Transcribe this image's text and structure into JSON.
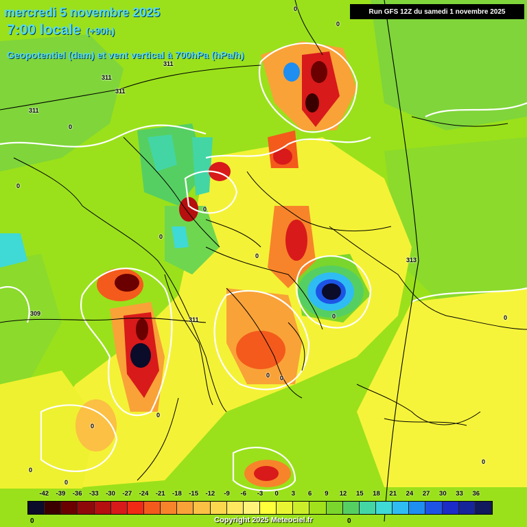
{
  "header": {
    "date_line": "mercredi 5 novembre 2025",
    "time_line": "7:00 locale",
    "lead_time": "(+90h)",
    "field_line": "Geopotentiel (dam) et vent vertical à 700hPa (hPa/h)"
  },
  "run_info": "Run GFS 12Z du samedi 1 novembre 2025",
  "contour_labels": {
    "l311_a": "311",
    "l311_b": "311",
    "l311_c": "311",
    "l311_d": "311",
    "l311_e": "311",
    "l309": "309",
    "l313": "313",
    "z_a": "0",
    "z_b": "0",
    "z_c": "0",
    "z_d": "0",
    "z_e": "0",
    "z_f": "0",
    "z_g": "0",
    "z_h": "0",
    "z_i": "0",
    "z_j": "0",
    "z_k": "0",
    "z_l": "0",
    "z_m": "0",
    "z_n": "0",
    "z_o": "0",
    "z_p": "0"
  },
  "legend": {
    "ticks": [
      "-42",
      "-39",
      "-36",
      "-33",
      "-30",
      "-27",
      "-24",
      "-21",
      "-18",
      "-15",
      "-12",
      "-9",
      "-6",
      "-3",
      "0",
      "3",
      "6",
      "9",
      "12",
      "15",
      "18",
      "21",
      "24",
      "27",
      "30",
      "33",
      "36"
    ],
    "colors": [
      "#0b0b2a",
      "#3a0000",
      "#6a0000",
      "#8e0a0a",
      "#b50f0f",
      "#d81a1a",
      "#f02a14",
      "#f45a1c",
      "#f7842a",
      "#f9a238",
      "#fbc044",
      "#fcd84e",
      "#fde860",
      "#fff37a",
      "#ffff3a",
      "#e9f532",
      "#ccee2a",
      "#a2e21c",
      "#7ad62c",
      "#56cf62",
      "#43d6a4",
      "#3fd9d6",
      "#2fbcf3",
      "#1e8ef0",
      "#1d54e6",
      "#1c2cc6",
      "#17259a",
      "#101a5c"
    ]
  },
  "copyright": "Copyright 2025 Meteociel.fr",
  "legend_zero_left": "0",
  "legend_zero_right": "0"
}
